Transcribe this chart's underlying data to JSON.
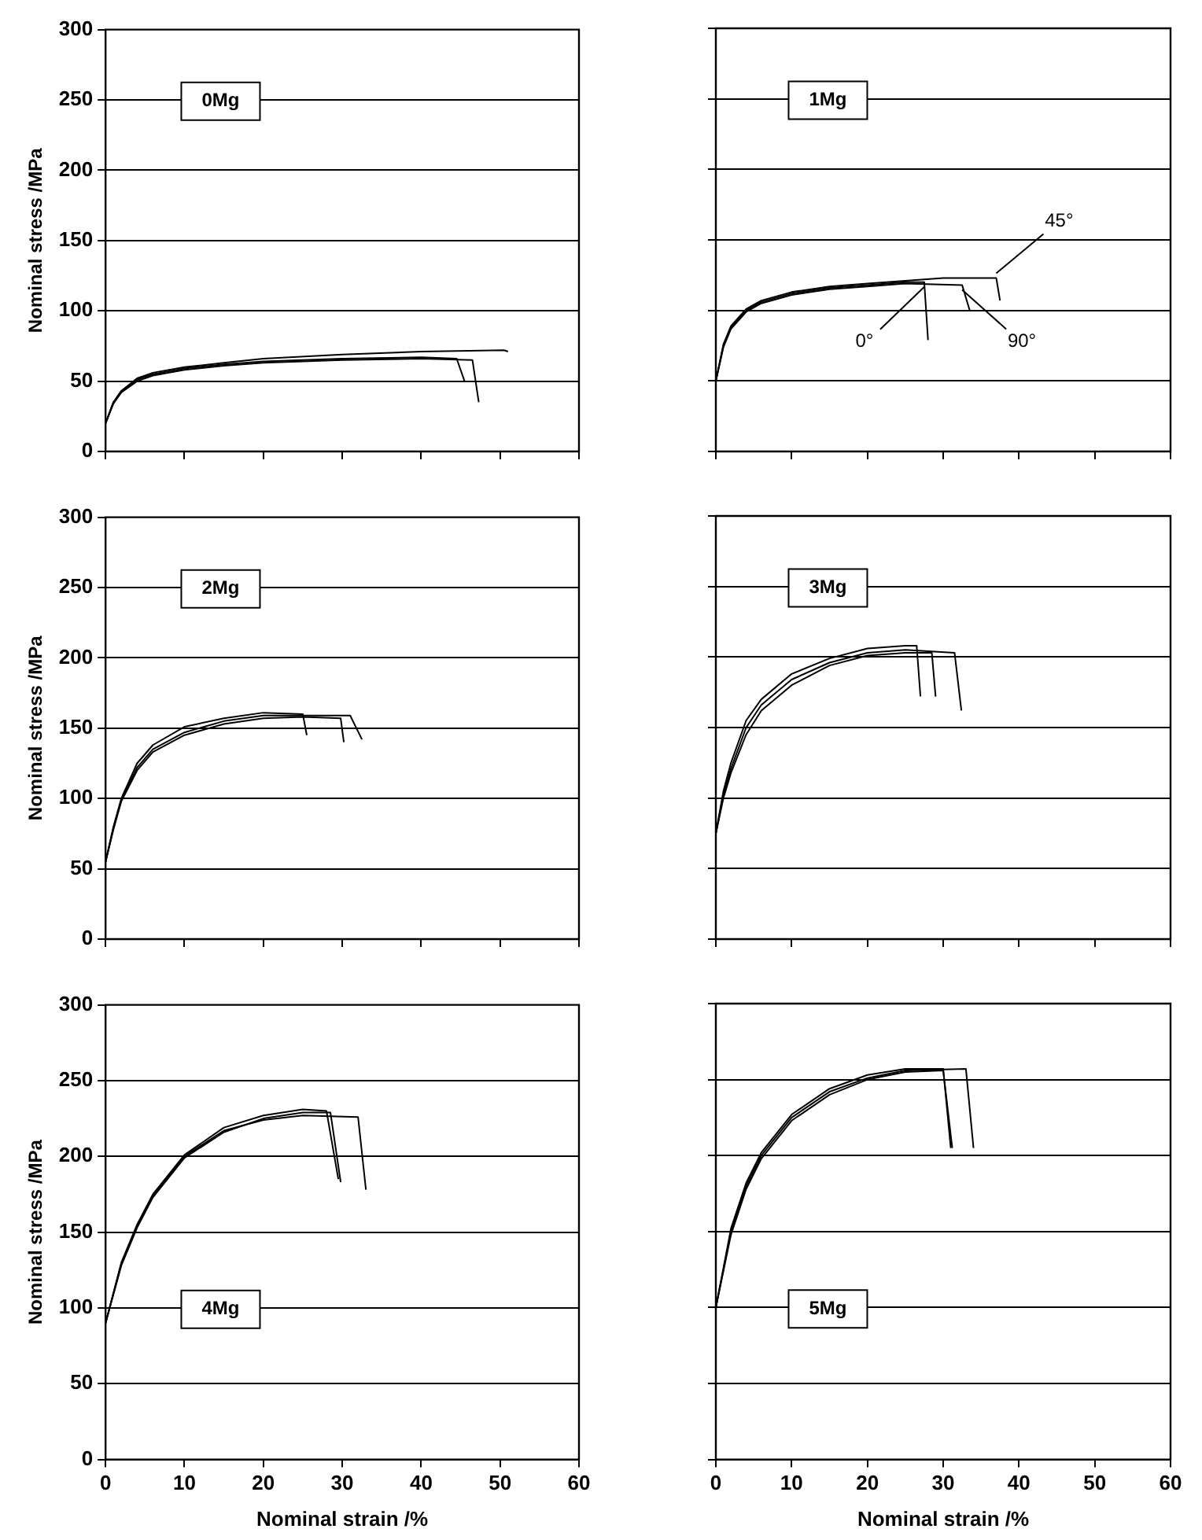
{
  "chart_data": [
    {
      "type": "line",
      "ylabel": "Nominal stress /MPa",
      "annotations": [
        "0Mg"
      ],
      "xlim": [
        0,
        60
      ],
      "ylim": [
        0,
        300
      ],
      "xticks": [
        0,
        10,
        20,
        30,
        40,
        50,
        60
      ],
      "yticks": [
        0,
        50,
        100,
        150,
        200,
        250,
        300
      ],
      "grid": "y",
      "legend": false,
      "marker": "none",
      "line_style": "solid",
      "tick_labels": "y",
      "series": [
        {
          "color": "#000000",
          "x": [
            0,
            1,
            2,
            4,
            6,
            10,
            15,
            20,
            30,
            40,
            50.5,
            51
          ],
          "values": [
            20,
            35,
            43,
            52,
            56,
            60,
            63,
            66,
            69,
            71,
            72,
            71
          ]
        },
        {
          "color": "#000000",
          "x": [
            0,
            1,
            2,
            4,
            6,
            10,
            15,
            20,
            30,
            40,
            44.5,
            45.5
          ],
          "values": [
            20,
            35,
            43,
            51,
            55,
            59,
            62,
            64,
            66,
            67,
            66,
            50
          ]
        },
        {
          "color": "#000000",
          "x": [
            0,
            1,
            2,
            4,
            6,
            10,
            15,
            20,
            30,
            40,
            46.5,
            47.3
          ],
          "values": [
            20,
            34,
            42,
            50,
            54,
            58,
            61,
            63,
            65,
            66,
            65,
            35
          ]
        }
      ]
    },
    {
      "type": "line",
      "annotations": [
        "1Mg"
      ],
      "xlim": [
        0,
        60
      ],
      "ylim": [
        0,
        300
      ],
      "xticks": [
        0,
        10,
        20,
        30,
        40,
        50,
        60
      ],
      "yticks": [
        0,
        50,
        100,
        150,
        200,
        250,
        300
      ],
      "grid": "y",
      "legend": false,
      "marker": "none",
      "line_style": "solid",
      "tick_labels": false,
      "series": [
        {
          "name": "0°",
          "color": "#000000",
          "x": [
            0,
            1,
            2,
            4,
            6,
            10,
            15,
            20,
            25,
            27.5,
            28
          ],
          "values": [
            50,
            75,
            88,
            100,
            106,
            112,
            116,
            118,
            120,
            120,
            79
          ]
        },
        {
          "name": "45°",
          "color": "#000000",
          "x": [
            0,
            1,
            2,
            4,
            6,
            10,
            15,
            20,
            25,
            30,
            37,
            37.5
          ],
          "values": [
            50,
            76,
            89,
            101,
            107,
            113,
            117,
            119,
            121,
            123,
            123,
            107
          ]
        },
        {
          "name": "90°",
          "color": "#000000",
          "x": [
            0,
            1,
            2,
            4,
            6,
            10,
            15,
            20,
            25,
            32.5,
            33.5
          ],
          "values": [
            50,
            74,
            87,
            99,
            105,
            111,
            115,
            117,
            119,
            118,
            100
          ]
        }
      ]
    },
    {
      "type": "line",
      "ylabel": "Nominal stress /MPa",
      "annotations": [
        "2Mg"
      ],
      "xlim": [
        0,
        60
      ],
      "ylim": [
        0,
        300
      ],
      "xticks": [
        0,
        10,
        20,
        30,
        40,
        50,
        60
      ],
      "yticks": [
        0,
        50,
        100,
        150,
        200,
        250,
        300
      ],
      "grid": "y",
      "legend": false,
      "marker": "none",
      "line_style": "solid",
      "tick_labels": "y",
      "series": [
        {
          "color": "#000000",
          "x": [
            0,
            1,
            2,
            4,
            6,
            10,
            15,
            20,
            25,
            25.5
          ],
          "values": [
            55,
            80,
            100,
            125,
            138,
            151,
            157,
            161,
            160,
            145
          ]
        },
        {
          "color": "#000000",
          "x": [
            0,
            1,
            2,
            4,
            6,
            10,
            15,
            20,
            25,
            29.8,
            30.2
          ],
          "values": [
            55,
            78,
            98,
            120,
            133,
            145,
            153,
            157,
            158,
            157,
            140
          ]
        },
        {
          "color": "#000000",
          "x": [
            0,
            1,
            2,
            4,
            6,
            10,
            15,
            20,
            25,
            31,
            32.5
          ],
          "values": [
            55,
            79,
            99,
            122,
            135,
            147,
            155,
            159,
            159,
            159,
            142
          ]
        }
      ]
    },
    {
      "type": "line",
      "annotations": [
        "3Mg"
      ],
      "xlim": [
        0,
        60
      ],
      "ylim": [
        0,
        300
      ],
      "xticks": [
        0,
        10,
        20,
        30,
        40,
        50,
        60
      ],
      "yticks": [
        0,
        50,
        100,
        150,
        200,
        250,
        300
      ],
      "grid": "y",
      "legend": false,
      "marker": "none",
      "line_style": "solid",
      "tick_labels": false,
      "series": [
        {
          "color": "#000000",
          "x": [
            0,
            1,
            2,
            4,
            6,
            10,
            15,
            20,
            25,
            26.5,
            27
          ],
          "values": [
            75,
            105,
            125,
            155,
            170,
            188,
            199,
            206,
            208,
            208,
            172
          ]
        },
        {
          "color": "#000000",
          "x": [
            0,
            1,
            2,
            4,
            6,
            10,
            15,
            20,
            25,
            28.5,
            29
          ],
          "values": [
            75,
            100,
            118,
            145,
            162,
            180,
            194,
            201,
            203,
            203,
            172
          ]
        },
        {
          "color": "#000000",
          "x": [
            0,
            1,
            2,
            4,
            6,
            10,
            15,
            20,
            25,
            31.5,
            32.4
          ],
          "values": [
            75,
            102,
            121,
            150,
            166,
            184,
            196,
            203,
            205,
            203,
            162
          ]
        }
      ]
    },
    {
      "type": "line",
      "xlabel": "Nominal strain /%",
      "ylabel": "Nominal stress /MPa",
      "annotations": [
        "4Mg"
      ],
      "xlim": [
        0,
        60
      ],
      "ylim": [
        0,
        300
      ],
      "xticks": [
        0,
        10,
        20,
        30,
        40,
        50,
        60
      ],
      "yticks": [
        0,
        50,
        100,
        150,
        200,
        250,
        300
      ],
      "grid": "y",
      "legend": false,
      "marker": "none",
      "line_style": "solid",
      "series": [
        {
          "color": "#000000",
          "x": [
            0,
            2,
            4,
            6,
            10,
            15,
            20,
            25,
            28,
            29.5
          ],
          "values": [
            90,
            130,
            155,
            175,
            201,
            219,
            227,
            231,
            230,
            185
          ]
        },
        {
          "color": "#000000",
          "x": [
            0,
            2,
            4,
            6,
            10,
            15,
            20,
            25,
            28.5,
            29.8
          ],
          "values": [
            90,
            128,
            153,
            173,
            199,
            216,
            225,
            229,
            229,
            183
          ]
        },
        {
          "color": "#000000",
          "x": [
            0,
            2,
            4,
            6,
            10,
            15,
            20,
            25,
            32,
            33
          ],
          "values": [
            90,
            129,
            154,
            174,
            200,
            217,
            224,
            227,
            226,
            178
          ]
        }
      ]
    },
    {
      "type": "line",
      "xlabel": "Nominal strain /%",
      "annotations": [
        "5Mg"
      ],
      "xlim": [
        0,
        60
      ],
      "ylim": [
        0,
        300
      ],
      "xticks": [
        0,
        10,
        20,
        30,
        40,
        50,
        60
      ],
      "yticks": [
        0,
        50,
        100,
        150,
        200,
        250,
        300
      ],
      "grid": "y",
      "legend": false,
      "marker": "none",
      "line_style": "solid",
      "tick_labels": "x",
      "series": [
        {
          "color": "#000000",
          "x": [
            0,
            2,
            4,
            6,
            10,
            15,
            20,
            25,
            30,
            31
          ],
          "values": [
            100,
            152,
            182,
            202,
            227,
            244,
            253,
            257,
            257,
            205
          ]
        },
        {
          "color": "#000000",
          "x": [
            0,
            2,
            4,
            6,
            10,
            15,
            20,
            25,
            30,
            31.2
          ],
          "values": [
            100,
            148,
            178,
            198,
            223,
            240,
            250,
            255,
            256,
            205
          ]
        },
        {
          "color": "#000000",
          "x": [
            0,
            2,
            4,
            6,
            10,
            15,
            20,
            25,
            33,
            34
          ],
          "values": [
            100,
            150,
            180,
            200,
            225,
            242,
            251,
            256,
            257,
            205
          ]
        }
      ]
    }
  ]
}
